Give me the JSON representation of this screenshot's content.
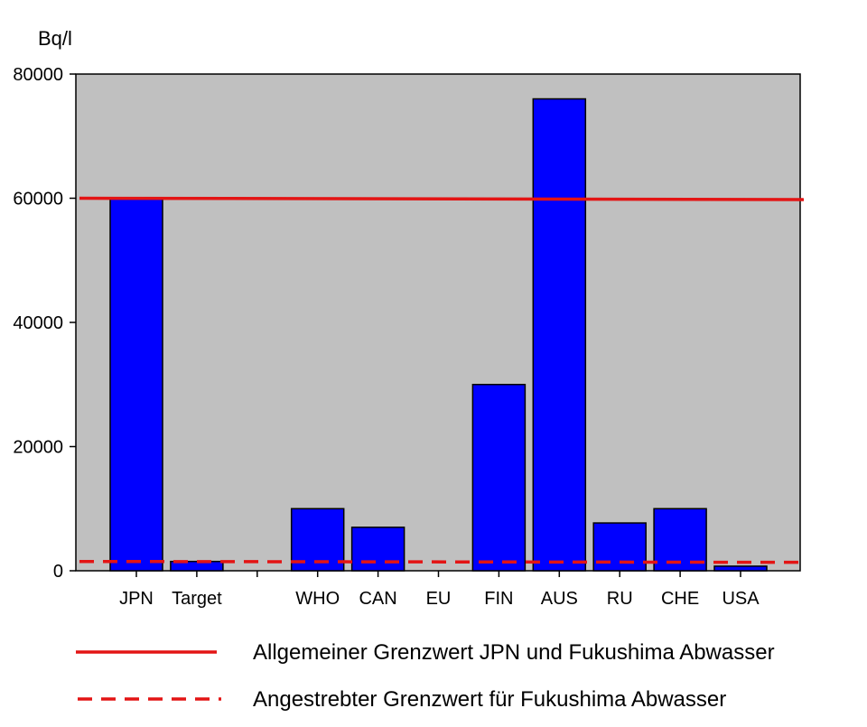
{
  "chart_data": {
    "type": "bar",
    "unit_label": "Bq/l",
    "categories": [
      "JPN",
      "Target",
      "",
      "WHO",
      "CAN",
      "EU",
      "FIN",
      "AUS",
      "RU",
      "CHE",
      "USA"
    ],
    "values": [
      60000,
      1500,
      null,
      10000,
      7000,
      null,
      30000,
      76000,
      7700,
      10000,
      740
    ],
    "ylim": [
      0,
      80000
    ],
    "yticks": [
      "0",
      "20000",
      "40000",
      "60000",
      "80000"
    ],
    "reference_lines": [
      {
        "label": "Allgemeiner Grenzwert JPN und Fukushima Abwasser",
        "value": 60000,
        "style": "solid"
      },
      {
        "label": "Angestrebter Grenzwert für Fukushima Abwasser",
        "value": 1500,
        "style": "dashed"
      }
    ],
    "grid": false,
    "legend_position": "bottom"
  },
  "colors": {
    "bar": "#0000ff",
    "plot_background": "#c0c0c0",
    "reference_line": "#e31414"
  }
}
